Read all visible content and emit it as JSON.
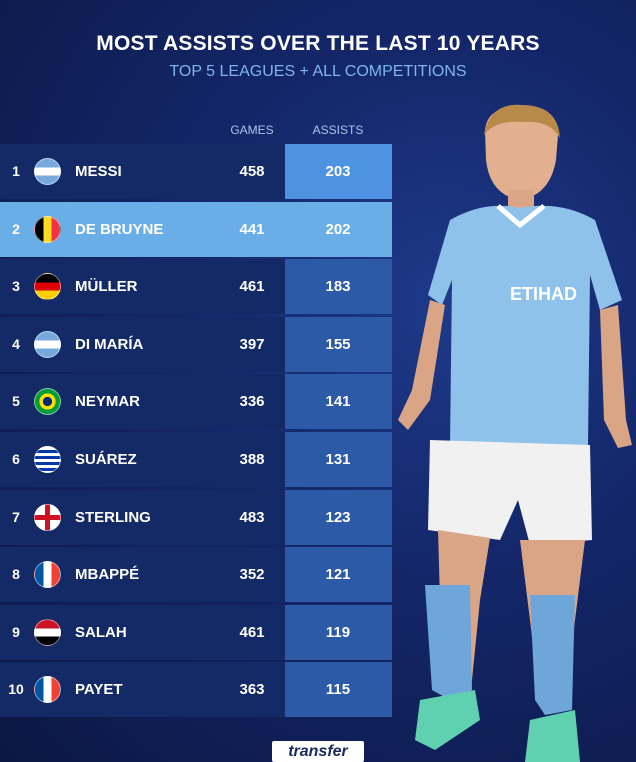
{
  "header": {
    "title": "MOST ASSISTS OVER THE LAST 10 YEARS",
    "subtitle": "TOP 5 LEAGUES + ALL COMPETITIONS"
  },
  "table": {
    "columns": [
      "GAMES",
      "ASSISTS"
    ],
    "rows": [
      [
        "1",
        "MESSI",
        "458",
        "203"
      ],
      [
        "2",
        "DE BRUYNE",
        "441",
        "202"
      ],
      [
        "3",
        "MÜLLER",
        "461",
        "183"
      ],
      [
        "4",
        "DI MARÍA",
        "397",
        "155"
      ],
      [
        "5",
        "NEYMAR",
        "336",
        "141"
      ],
      [
        "6",
        "SUÁREZ",
        "388",
        "131"
      ],
      [
        "7",
        "STERLING",
        "483",
        "123"
      ],
      [
        "8",
        "MBAPPÉ",
        "352",
        "121"
      ],
      [
        "9",
        "SALAH",
        "461",
        "119"
      ],
      [
        "10",
        "PAYET",
        "363",
        "115"
      ]
    ]
  },
  "footer": {
    "logo": "transfer"
  }
}
